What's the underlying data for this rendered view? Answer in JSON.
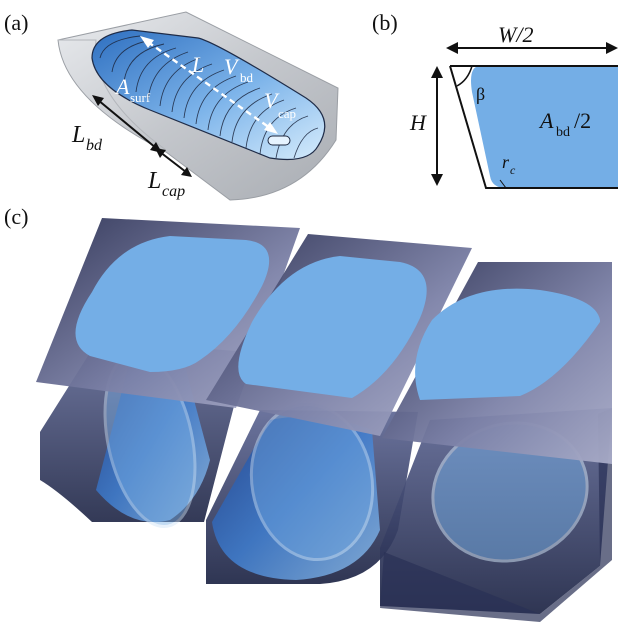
{
  "panels": {
    "a": {
      "tag": "(a)",
      "labels": {
        "L": "L",
        "V": "V",
        "V_sub": "bd",
        "Vc": "V",
        "Vc_sub": "cap",
        "A": "A",
        "A_sub": "surf",
        "Lbd": "L",
        "Lbd_sub": "bd",
        "Lcap": "L",
        "Lcap_sub": "cap"
      }
    },
    "b": {
      "tag": "(b)",
      "labels": {
        "W": "W/2",
        "H": "H",
        "beta": "β",
        "A": "A",
        "A_sub": "bd",
        "A_suffix": "/2",
        "r": "r",
        "r_sub": "c"
      }
    },
    "c": {
      "tag": "(c)"
    }
  },
  "colors": {
    "drop_blue": "#74aee6",
    "drop_blue_light": "#a9d0f2",
    "plate_dark": "#3a3f63",
    "plate_light": "#8e93b6",
    "channel_gray": "#c9ccd0"
  }
}
